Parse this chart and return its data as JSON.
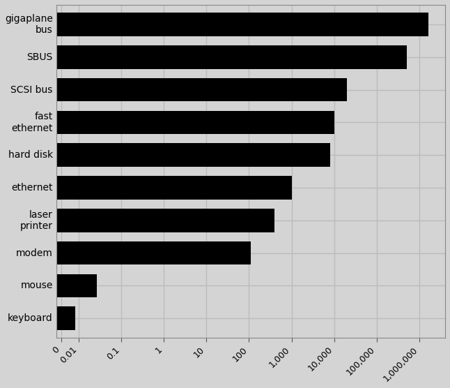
{
  "categories": [
    "keyboard",
    "mouse",
    "modem",
    "laser\nprinter",
    "ethernet",
    "hard disk",
    "fast\nethernet",
    "SCSI bus",
    "SBUS",
    "gigaplane\nbus"
  ],
  "values": [
    0.0083,
    0.027,
    112,
    400,
    1000,
    8000,
    10000,
    20000,
    500000,
    1600000
  ],
  "bar_color": "#000000",
  "background_color": "#d4d4d4",
  "grid_color": "#bbbbbb",
  "xlim_left": 0.003,
  "xlim_right": 4000000,
  "bar_height": 0.72,
  "tick_labels": [
    "0",
    "0.01",
    "0.1",
    "1",
    "10",
    "100",
    "1,000",
    "10,000",
    "100,000",
    "1,000,000"
  ],
  "tick_values": [
    0.004,
    0.01,
    0.1,
    1,
    10,
    100,
    1000,
    10000,
    100000,
    1000000
  ],
  "label_fontsize": 10,
  "tick_fontsize": 9
}
